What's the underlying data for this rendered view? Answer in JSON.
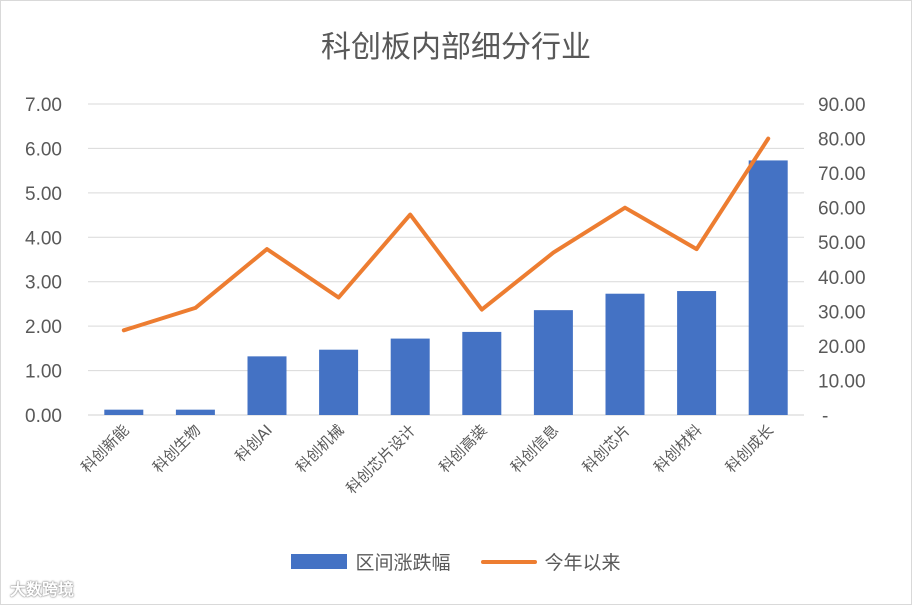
{
  "chart_data": {
    "type": "bar",
    "title": "科创板内部细分行业",
    "categories": [
      "科创新能",
      "科创生物",
      "科创AI",
      "科创机械",
      "科创芯片设计",
      "科创高装",
      "科创信息",
      "科创芯片",
      "科创材料",
      "科创成长"
    ],
    "series": [
      {
        "name": "区间涨跌幅",
        "type": "bar",
        "axis": "left",
        "color": "#4472c4",
        "values": [
          0.12,
          0.12,
          1.32,
          1.47,
          1.72,
          1.87,
          2.36,
          2.73,
          2.79,
          5.73
        ]
      },
      {
        "name": "今年以来",
        "type": "line",
        "axis": "right",
        "color": "#ed7d31",
        "values": [
          24.5,
          31.0,
          48.0,
          34.0,
          58.0,
          30.5,
          47.0,
          60.0,
          48.0,
          80.0
        ]
      }
    ],
    "y_left": {
      "ylim": [
        0,
        7
      ],
      "ticks": [
        "0.00",
        "1.00",
        "2.00",
        "3.00",
        "4.00",
        "5.00",
        "6.00",
        "7.00"
      ]
    },
    "y_right": {
      "ylim": [
        0,
        90
      ],
      "ticks": [
        "-",
        "10.00",
        "20.00",
        "30.00",
        "40.00",
        "50.00",
        "60.00",
        "70.00",
        "80.00",
        "90.00"
      ]
    },
    "grid": true,
    "legend_position": "bottom"
  },
  "watermark": "大数跨境"
}
